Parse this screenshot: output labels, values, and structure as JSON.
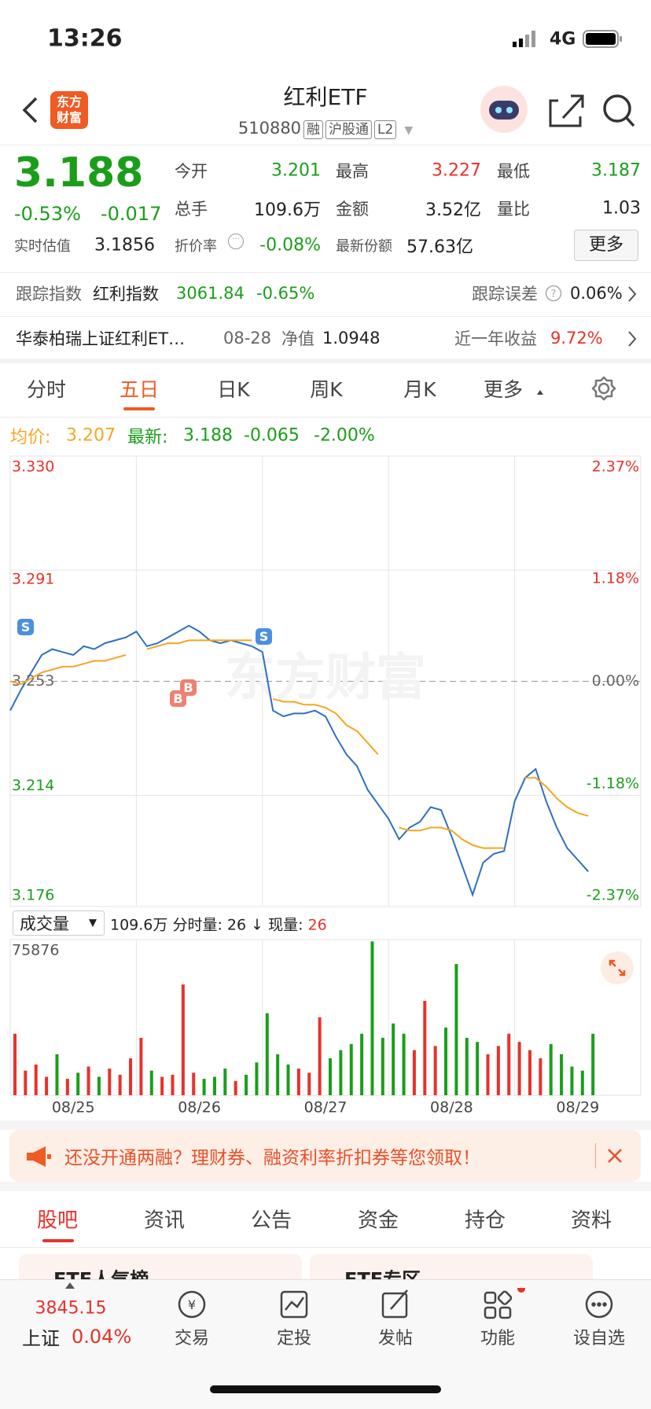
{
  "status": {
    "time": "13:26",
    "network": "4G"
  },
  "header": {
    "logo": [
      "东方",
      "财富"
    ],
    "title": "红利ETF",
    "code": "510880",
    "tags": [
      "融",
      "沪股通",
      "L2"
    ]
  },
  "quote": {
    "price": "3.188",
    "change_pct": "-0.53%",
    "change": "-0.017",
    "fields": [
      {
        "label": "今开",
        "value": "3.201"
      },
      {
        "label": "最高",
        "value": "3.227"
      },
      {
        "label": "最低",
        "value": "3.187"
      },
      {
        "label": "总手",
        "value": "109.6万"
      },
      {
        "label": "金额",
        "value": "3.52亿"
      },
      {
        "label": "量比",
        "value": "1.03"
      },
      {
        "label": "实时估值",
        "value": "3.1856"
      },
      {
        "label": "折价率",
        "value": "-0.08%"
      },
      {
        "label": "最新份额",
        "value": "57.63亿"
      }
    ],
    "more": "更多"
  },
  "tracking": {
    "label": "跟踪指数",
    "index": "红利指数",
    "value": "3061.84",
    "pct": "-0.65%",
    "error_label": "跟踪误差",
    "error": "0.06%"
  },
  "fund": {
    "name": "华泰柏瑞上证红利ET…",
    "date": "08-28",
    "nav_label": "净值",
    "nav": "1.0948",
    "year_label": "近一年收益",
    "year": "9.72%"
  },
  "tabs": [
    "分时",
    "五日",
    "日K",
    "周K",
    "月K",
    "更多"
  ],
  "info": {
    "avg_label": "均价:",
    "avg": "3.207",
    "latest_label": "最新:",
    "latest": "3.188",
    "change": "-0.065",
    "pct": "-2.00%"
  },
  "chart_data": [
    {
      "type": "line",
      "watermark": "东方财富",
      "annotations": [
        "S",
        "B",
        "B",
        "S"
      ],
      "x": [
        0,
        20,
        40,
        60,
        80,
        100,
        120,
        140,
        160,
        180,
        200,
        220,
        240,
        260,
        280,
        300,
        320,
        340,
        360,
        380,
        400,
        420,
        440,
        460,
        480,
        500,
        520,
        540,
        560,
        580,
        600,
        620,
        640,
        660,
        680,
        700,
        720,
        740,
        760,
        780,
        800,
        820,
        840,
        860,
        880,
        900,
        920,
        940,
        960,
        980,
        1000,
        1020,
        1040,
        1060,
        1080,
        1100
      ],
      "xlim": [
        0,
        1200
      ],
      "xticks": [
        {
          "value": 120,
          "label": "08/25"
        },
        {
          "value": 360,
          "label": "08/26"
        },
        {
          "value": 600,
          "label": "08/27"
        },
        {
          "value": 840,
          "label": "08/28"
        },
        {
          "value": 1080,
          "label": "08/29"
        }
      ],
      "ylim": [
        3.176,
        3.33
      ],
      "yticks": [
        {
          "value": 3.33,
          "label": "3.330"
        },
        3.291,
        3.253,
        3.214,
        3.176
      ],
      "y2lim": [
        -2.37,
        2.37
      ],
      "y2ticks": [
        {
          "value": 2.37,
          "label": "2.37%"
        },
        {
          "value": 1.18,
          "label": "1.18%"
        },
        {
          "value": 0,
          "label": "0.00%"
        },
        {
          "value": -1.18,
          "label": "-1.18%"
        },
        {
          "value": -2.37,
          "label": "-2.37%"
        }
      ],
      "series": [
        {
          "color": "#2f6fc0",
          "values": [
            3.243,
            3.25,
            3.256,
            3.262,
            3.264,
            3.263,
            3.262,
            3.265,
            3.264,
            3.266,
            3.267,
            3.268,
            3.27,
            3.265,
            3.266,
            3.268,
            3.27,
            3.272,
            3.27,
            3.267,
            3.266,
            3.267,
            3.266,
            3.265,
            3.263,
            3.243,
            3.241,
            3.242,
            3.242,
            3.243,
            3.241,
            3.234,
            3.228,
            3.224,
            3.216,
            3.211,
            3.206,
            3.199,
            3.203,
            3.205,
            3.21,
            3.209,
            3.2,
            3.19,
            3.18,
            3.191,
            3.194,
            3.195,
            3.212,
            3.22,
            3.223,
            3.212,
            3.203,
            3.196,
            3.192,
            3.188
          ]
        },
        {
          "color": "#f5a623",
          "values": [
            3.253,
            3.252,
            3.254,
            3.256,
            3.257,
            3.258,
            3.258,
            3.259,
            3.26,
            3.26,
            3.261,
            3.262,
            null,
            3.264,
            3.265,
            3.266,
            3.266,
            3.267,
            3.267,
            3.267,
            3.267,
            3.267,
            3.267,
            3.267,
            null,
            3.247,
            3.246,
            3.246,
            3.245,
            3.245,
            3.244,
            3.242,
            3.238,
            3.236,
            3.232,
            3.228,
            null,
            3.203,
            3.202,
            3.202,
            3.203,
            3.203,
            3.202,
            3.199,
            3.197,
            3.196,
            3.196,
            3.196,
            null,
            3.22,
            3.22,
            3.217,
            3.213,
            3.21,
            3.208,
            3.207
          ]
        }
      ]
    },
    {
      "type": "bar",
      "x": [
        0,
        20,
        40,
        60,
        80,
        100,
        120,
        140,
        160,
        180,
        200,
        220,
        240,
        260,
        280,
        300,
        320,
        340,
        360,
        380,
        400,
        420,
        440,
        460,
        480,
        500,
        520,
        540,
        560,
        580,
        600,
        620,
        640,
        660,
        680,
        700,
        720,
        740,
        760,
        780,
        800,
        820,
        840,
        860,
        880,
        900,
        920,
        940,
        960,
        980,
        1000,
        1020,
        1040,
        1060,
        1080,
        1100
      ],
      "xlim": [
        0,
        1200
      ],
      "ylim": [
        0,
        75876
      ],
      "yticks": [
        75876
      ],
      "values": [
        30000,
        12000,
        15000,
        9000,
        20000,
        8000,
        11000,
        14000,
        9000,
        13000,
        10000,
        18000,
        28000,
        12000,
        9000,
        10000,
        54000,
        11000,
        8000,
        9000,
        13000,
        7000,
        10000,
        16000,
        40000,
        20000,
        15000,
        13000,
        11000,
        38000,
        18000,
        22000,
        25000,
        30000,
        75000,
        28000,
        35000,
        30000,
        22000,
        46000,
        24000,
        33000,
        64000,
        28000,
        26000,
        20000,
        24000,
        30000,
        26000,
        22000,
        18000,
        25000,
        20000,
        14000,
        12000,
        30000
      ],
      "colors": [
        "#e8312a",
        "#e8312a",
        "#e8312a",
        "#e8312a",
        "#1a9e1a",
        "#e8312a",
        "#1a9e1a",
        "#e8312a",
        "#1a9e1a",
        "#e8312a",
        "#e8312a",
        "#e8312a",
        "#e8312a",
        "#1a9e1a",
        "#e8312a",
        "#e8312a",
        "#e8312a",
        "#e8312a",
        "#1a9e1a",
        "#1a9e1a",
        "#1a9e1a",
        "#e8312a",
        "#1a9e1a",
        "#1a9e1a",
        "#1a9e1a",
        "#1a9e1a",
        "#1a9e1a",
        "#e8312a",
        "#e8312a",
        "#e8312a",
        "#1a9e1a",
        "#1a9e1a",
        "#1a9e1a",
        "#1a9e1a",
        "#1a9e1a",
        "#1a9e1a",
        "#1a9e1a",
        "#1a9e1a",
        "#e8312a",
        "#e8312a",
        "#e8312a",
        "#1a9e1a",
        "#1a9e1a",
        "#1a9e1a",
        "#1a9e1a",
        "#e8312a",
        "#e8312a",
        "#e8312a",
        "#e8312a",
        "#e8312a",
        "#e8312a",
        "#1a9e1a",
        "#1a9e1a",
        "#1a9e1a",
        "#1a9e1a",
        "#1a9e1a"
      ]
    }
  ],
  "volume_header": {
    "selector": "成交量",
    "total": "109.6万",
    "part_label": "分时量:",
    "part": "26",
    "arrow": "↓",
    "now_label": "现量:",
    "now": "26"
  },
  "banner": {
    "text": "还没开通两融？理财券、融资利率折扣券等您领取！"
  },
  "sub_tabs": [
    "股吧",
    "资讯",
    "公告",
    "资金",
    "持仓",
    "资料"
  ],
  "cards": [
    "ETF人气榜",
    "ETF专区"
  ],
  "bottom_nav": {
    "index_value": "3845.15",
    "index_name": "上证",
    "index_pct": "0.04%",
    "items": [
      "交易",
      "定投",
      "发帖",
      "功能",
      "设自选"
    ]
  }
}
